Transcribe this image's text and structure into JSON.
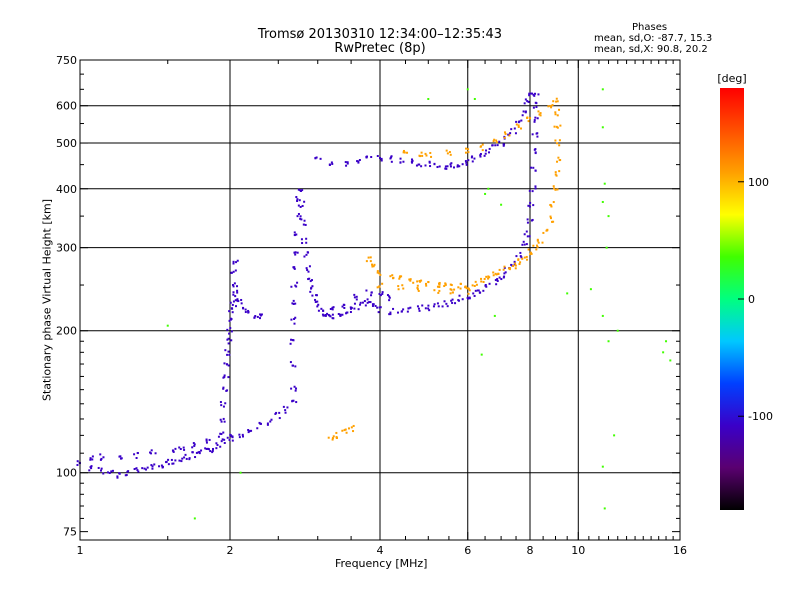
{
  "chart_data": {
    "type": "scatter",
    "title_line1": "Tromsø 20130310 12:34:00–12:35:43",
    "title_line2": "RwPretec (8p)",
    "phases": {
      "heading": "Phases",
      "o_label": "mean, sd,O:  -87.7, 15.3",
      "x_label": "mean, sd,X:  90.8, 20.2"
    },
    "xlabel": "Frequency [MHz]",
    "ylabel": "Stationary phase Virtual Height [km]",
    "x_scale": "log",
    "y_scale": "log",
    "xlim": [
      1,
      16
    ],
    "ylim": [
      72,
      750
    ],
    "x_ticks": [
      1,
      2,
      4,
      6,
      8,
      10,
      16
    ],
    "x_tick_labels": [
      "1",
      "2",
      "4",
      "6",
      "8",
      "10",
      "16"
    ],
    "y_ticks": [
      75,
      100,
      200,
      300,
      400,
      500,
      600,
      750
    ],
    "y_tick_labels": [
      "75",
      "100",
      "200",
      "300",
      "400",
      "500",
      "600",
      "750"
    ],
    "grid": true,
    "grid_x": [
      2,
      4,
      6,
      8,
      10
    ],
    "grid_y": [
      100,
      200,
      300,
      400,
      500,
      600
    ],
    "colorbar": {
      "label": "[deg]",
      "range": [
        -180,
        180
      ],
      "ticks": [
        100,
        0,
        -100
      ],
      "tick_labels": [
        "100",
        "0",
        "-100"
      ],
      "colormap": [
        "#000000",
        "#5a0070",
        "#3a00c8",
        "#0040ff",
        "#00c8ff",
        "#00ff80",
        "#40ff00",
        "#ffff00",
        "#ffa000",
        "#ff5000",
        "#ff0000"
      ]
    },
    "series": [
      {
        "mode": "O",
        "phase": -95,
        "points": [
          [
            1.0,
            105
          ],
          [
            1.05,
            102
          ],
          [
            1.1,
            101
          ],
          [
            1.15,
            100
          ],
          [
            1.2,
            99
          ],
          [
            1.25,
            100
          ],
          [
            1.3,
            101
          ],
          [
            1.35,
            102
          ],
          [
            1.4,
            103
          ],
          [
            1.45,
            104
          ],
          [
            1.5,
            105
          ],
          [
            1.55,
            106
          ],
          [
            1.6,
            107
          ],
          [
            1.65,
            108
          ],
          [
            1.7,
            109
          ],
          [
            1.75,
            110
          ],
          [
            1.8,
            111
          ],
          [
            1.85,
            112
          ],
          [
            1.9,
            114
          ],
          [
            1.95,
            117
          ],
          [
            2.0,
            120
          ],
          [
            1.05,
            108
          ],
          [
            1.1,
            108
          ],
          [
            1.2,
            108
          ],
          [
            1.3,
            109
          ],
          [
            1.4,
            110
          ],
          [
            1.55,
            112
          ],
          [
            1.6,
            112
          ],
          [
            1.7,
            114
          ],
          [
            1.8,
            116
          ],
          [
            1.92,
            120
          ],
          [
            1.93,
            130
          ],
          [
            1.94,
            140
          ],
          [
            1.95,
            150
          ],
          [
            1.96,
            160
          ],
          [
            1.97,
            170
          ],
          [
            1.98,
            180
          ],
          [
            1.99,
            190
          ],
          [
            2.0,
            200
          ],
          [
            2.01,
            210
          ],
          [
            2.02,
            220
          ],
          [
            2.03,
            228
          ],
          [
            2.05,
            235
          ],
          [
            2.06,
            240
          ],
          [
            2.1,
            230
          ],
          [
            2.15,
            222
          ],
          [
            2.2,
            218
          ],
          [
            2.25,
            215
          ],
          [
            2.3,
            215
          ],
          [
            2.05,
            250
          ],
          [
            2.04,
            265
          ],
          [
            2.06,
            280
          ],
          [
            2.0,
            118
          ],
          [
            2.1,
            120
          ],
          [
            2.2,
            123
          ],
          [
            2.3,
            126
          ],
          [
            2.4,
            128
          ],
          [
            2.5,
            132
          ],
          [
            2.6,
            136
          ],
          [
            2.7,
            142
          ],
          [
            2.68,
            150
          ],
          [
            2.67,
            170
          ],
          [
            2.66,
            190
          ],
          [
            2.67,
            210
          ],
          [
            2.68,
            230
          ],
          [
            2.69,
            250
          ],
          [
            2.7,
            270
          ],
          [
            2.72,
            290
          ],
          [
            2.73,
            320
          ],
          [
            2.74,
            350
          ],
          [
            2.75,
            380
          ],
          [
            2.76,
            400
          ],
          [
            2.78,
            370
          ],
          [
            2.8,
            340
          ],
          [
            2.82,
            310
          ],
          [
            2.85,
            290
          ],
          [
            2.88,
            270
          ],
          [
            2.9,
            255
          ],
          [
            2.92,
            245
          ],
          [
            2.95,
            235
          ],
          [
            3.0,
            228
          ],
          [
            3.05,
            222
          ],
          [
            3.1,
            218
          ],
          [
            3.15,
            215
          ],
          [
            3.2,
            214
          ],
          [
            3.3,
            215
          ],
          [
            3.4,
            218
          ],
          [
            3.5,
            222
          ],
          [
            3.6,
            225
          ],
          [
            3.7,
            228
          ],
          [
            3.8,
            230
          ],
          [
            3.9,
            226
          ],
          [
            4.0,
            222
          ],
          [
            4.2,
            220
          ],
          [
            4.4,
            221
          ],
          [
            4.6,
            222
          ],
          [
            4.8,
            223
          ],
          [
            5.0,
            224
          ],
          [
            5.2,
            226
          ],
          [
            5.4,
            228
          ],
          [
            5.6,
            231
          ],
          [
            5.8,
            234
          ],
          [
            6.0,
            237
          ],
          [
            6.2,
            240
          ],
          [
            6.4,
            244
          ],
          [
            6.6,
            248
          ],
          [
            6.8,
            254
          ],
          [
            7.0,
            260
          ],
          [
            7.2,
            268
          ],
          [
            7.4,
            278
          ],
          [
            7.6,
            290
          ],
          [
            7.8,
            305
          ],
          [
            7.9,
            320
          ],
          [
            8.0,
            340
          ],
          [
            8.05,
            370
          ],
          [
            8.1,
            400
          ],
          [
            8.12,
            440
          ],
          [
            8.15,
            480
          ],
          [
            8.18,
            520
          ],
          [
            8.2,
            560
          ],
          [
            8.22,
            600
          ],
          [
            8.24,
            630
          ],
          [
            3.0,
            460
          ],
          [
            3.2,
            455
          ],
          [
            3.4,
            452
          ],
          [
            3.6,
            458
          ],
          [
            3.8,
            462
          ],
          [
            4.0,
            465
          ],
          [
            4.2,
            462
          ],
          [
            4.4,
            458
          ],
          [
            4.6,
            455
          ],
          [
            4.8,
            452
          ],
          [
            5.0,
            450
          ],
          [
            5.2,
            448
          ],
          [
            5.4,
            447
          ],
          [
            5.6,
            448
          ],
          [
            5.8,
            450
          ],
          [
            6.0,
            455
          ],
          [
            6.2,
            462
          ],
          [
            6.4,
            470
          ],
          [
            6.6,
            480
          ],
          [
            6.8,
            490
          ],
          [
            7.0,
            500
          ],
          [
            7.2,
            515
          ],
          [
            7.4,
            530
          ],
          [
            7.6,
            550
          ],
          [
            7.8,
            580
          ],
          [
            7.9,
            610
          ],
          [
            8.0,
            640
          ],
          [
            3.6,
            235
          ],
          [
            3.8,
            240
          ],
          [
            4.0,
            238
          ],
          [
            4.2,
            235
          ],
          [
            3.4,
            225
          ],
          [
            3.2,
            222
          ]
        ]
      },
      {
        "mode": "X",
        "phase": 95,
        "points": [
          [
            3.8,
            285
          ],
          [
            3.9,
            275
          ],
          [
            4.0,
            265
          ],
          [
            4.2,
            260
          ],
          [
            4.4,
            258
          ],
          [
            4.6,
            256
          ],
          [
            4.8,
            254
          ],
          [
            5.0,
            252
          ],
          [
            5.2,
            250
          ],
          [
            5.4,
            249
          ],
          [
            5.6,
            248
          ],
          [
            5.8,
            248
          ],
          [
            6.0,
            249
          ],
          [
            6.2,
            251
          ],
          [
            6.4,
            254
          ],
          [
            6.6,
            258
          ],
          [
            6.8,
            262
          ],
          [
            7.0,
            266
          ],
          [
            7.2,
            270
          ],
          [
            7.4,
            275
          ],
          [
            7.6,
            280
          ],
          [
            7.8,
            286
          ],
          [
            8.0,
            293
          ],
          [
            8.2,
            300
          ],
          [
            8.4,
            310
          ],
          [
            8.6,
            325
          ],
          [
            8.8,
            345
          ],
          [
            8.9,
            370
          ],
          [
            9.0,
            400
          ],
          [
            9.05,
            430
          ],
          [
            9.1,
            460
          ],
          [
            9.1,
            500
          ],
          [
            9.08,
            540
          ],
          [
            9.05,
            580
          ],
          [
            9.0,
            620
          ],
          [
            4.0,
            250
          ],
          [
            4.4,
            248
          ],
          [
            4.8,
            246
          ],
          [
            5.2,
            244
          ],
          [
            5.6,
            243
          ],
          [
            6.0,
            243
          ],
          [
            3.2,
            118
          ],
          [
            3.3,
            120
          ],
          [
            3.4,
            122
          ],
          [
            3.5,
            124
          ],
          [
            4.5,
            480
          ],
          [
            4.8,
            475
          ],
          [
            5.0,
            470
          ],
          [
            5.5,
            475
          ],
          [
            6.0,
            480
          ],
          [
            6.4,
            490
          ],
          [
            6.8,
            505
          ],
          [
            7.2,
            520
          ],
          [
            7.6,
            540
          ],
          [
            8.0,
            560
          ],
          [
            8.4,
            580
          ],
          [
            8.8,
            600
          ]
        ]
      },
      {
        "mode": "noise",
        "phase": 40,
        "points": [
          [
            6.0,
            650
          ],
          [
            6.2,
            620
          ],
          [
            5.0,
            620
          ],
          [
            11.2,
            650
          ],
          [
            11.2,
            540
          ],
          [
            11.3,
            410
          ],
          [
            11.2,
            375
          ],
          [
            11.5,
            350
          ],
          [
            11.4,
            300
          ],
          [
            11.2,
            215
          ],
          [
            11.5,
            190
          ],
          [
            11.2,
            103
          ],
          [
            11.3,
            84
          ],
          [
            12.0,
            200
          ],
          [
            15.0,
            190
          ],
          [
            14.8,
            180
          ],
          [
            15.3,
            173
          ],
          [
            6.5,
            390
          ],
          [
            6.6,
            400
          ],
          [
            7.0,
            370
          ],
          [
            6.8,
            215
          ],
          [
            6.4,
            178
          ],
          [
            1.7,
            80
          ],
          [
            2.1,
            100
          ],
          [
            1.5,
            205
          ],
          [
            10.6,
            245
          ],
          [
            9.5,
            240
          ],
          [
            11.8,
            120
          ]
        ]
      }
    ]
  }
}
